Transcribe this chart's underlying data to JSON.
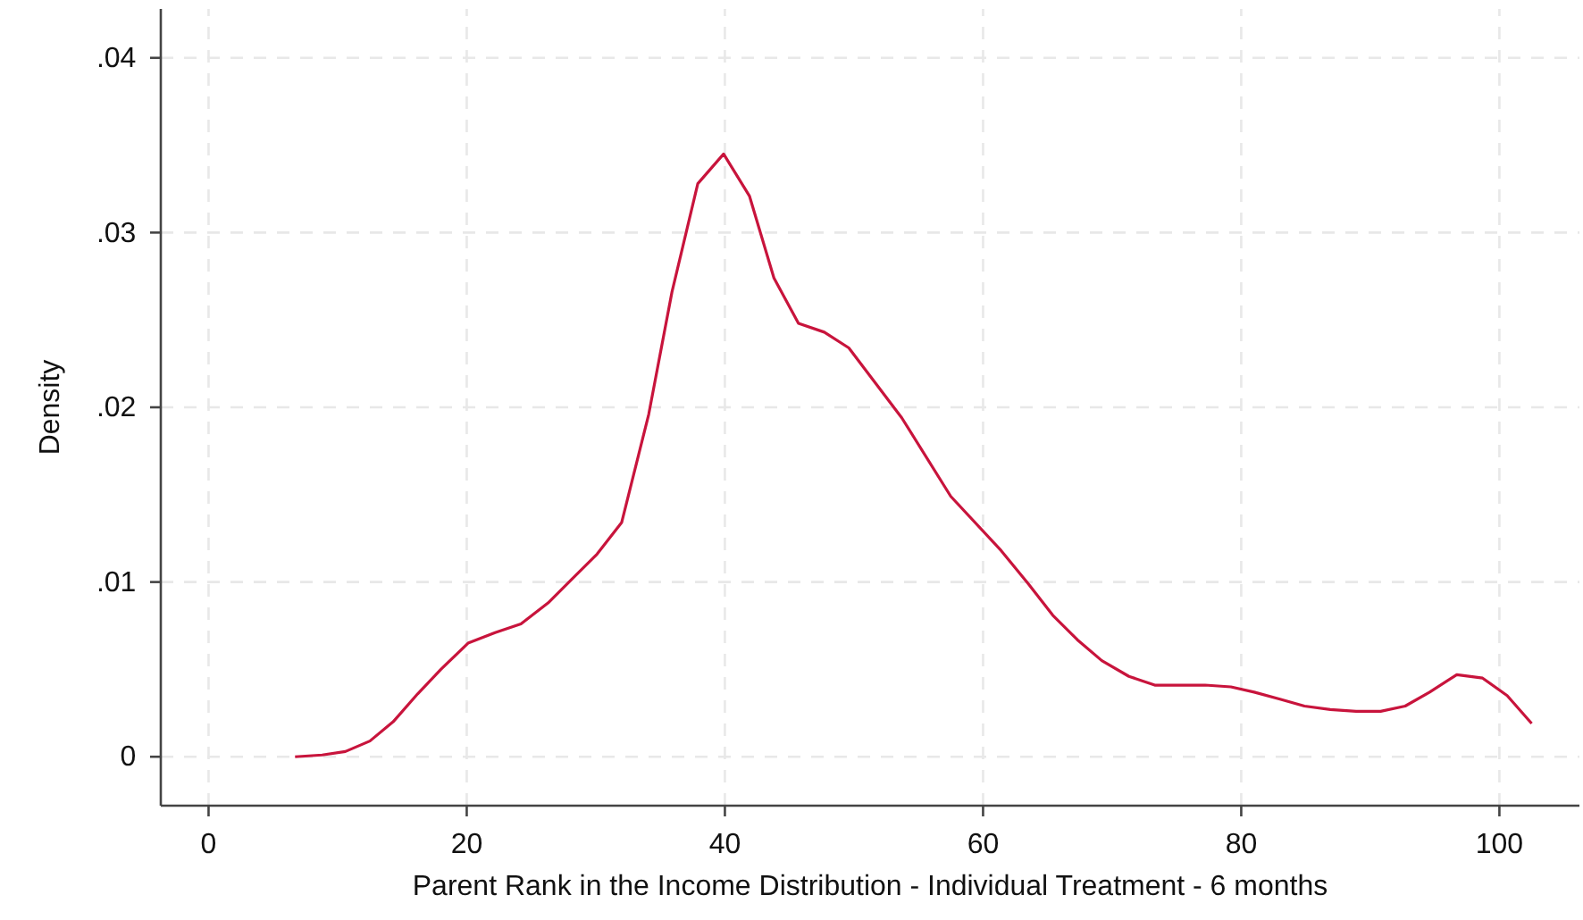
{
  "chart_data": {
    "type": "line",
    "xlabel": "Parent Rank in the Income Distribution - Individual Treatment - 6 months",
    "ylabel": "Density",
    "x": [
      6.7,
      8.8,
      10.6,
      12.5,
      14.3,
      16.2,
      18.0,
      20.1,
      22.2,
      24.2,
      26.3,
      28.2,
      30.1,
      32.0,
      34.1,
      35.9,
      37.9,
      39.9,
      41.9,
      43.8,
      45.7,
      47.7,
      49.6,
      53.7,
      57.5,
      61.4,
      63.5,
      65.4,
      67.3,
      69.2,
      71.3,
      73.3,
      75.2,
      77.2,
      79.2,
      81.0,
      83.0,
      84.9,
      86.9,
      88.9,
      90.8,
      92.7,
      94.6,
      96.7,
      98.7,
      100.6,
      102.5
    ],
    "series": [
      {
        "color": "#c8143c",
        "values": [
          0,
          0.0001,
          0.0003,
          0.0009,
          0.002,
          0.0036,
          0.005,
          0.0065,
          0.0071,
          0.0076,
          0.0088,
          0.0102,
          0.0116,
          0.0134,
          0.0196,
          0.0266,
          0.0328,
          0.0345,
          0.0321,
          0.0274,
          0.0248,
          0.0243,
          0.0234,
          0.0194,
          0.0149,
          0.0118,
          0.0099,
          0.0081,
          0.0067,
          0.0055,
          0.0046,
          0.0041,
          0.0041,
          0.0041,
          0.004,
          0.0037,
          0.0033,
          0.0029,
          0.0027,
          0.0026,
          0.0026,
          0.0029,
          0.0037,
          0.0047,
          0.0045,
          0.0035,
          0.0019
        ]
      }
    ],
    "xlim": [
      -3.7,
      106.2
    ],
    "ylim": [
      -0.0028,
      0.0428
    ],
    "xticks": [
      0,
      20,
      40,
      60,
      80,
      100
    ],
    "yticks": [
      0,
      {
        "value": 0.01,
        "label": ".01"
      },
      {
        "value": 0.02,
        "label": ".02"
      },
      {
        "value": 0.03,
        "label": ".03"
      },
      {
        "value": 0.04,
        "label": ".04"
      }
    ],
    "grid": true,
    "marker": "none",
    "line_style": "solid"
  }
}
